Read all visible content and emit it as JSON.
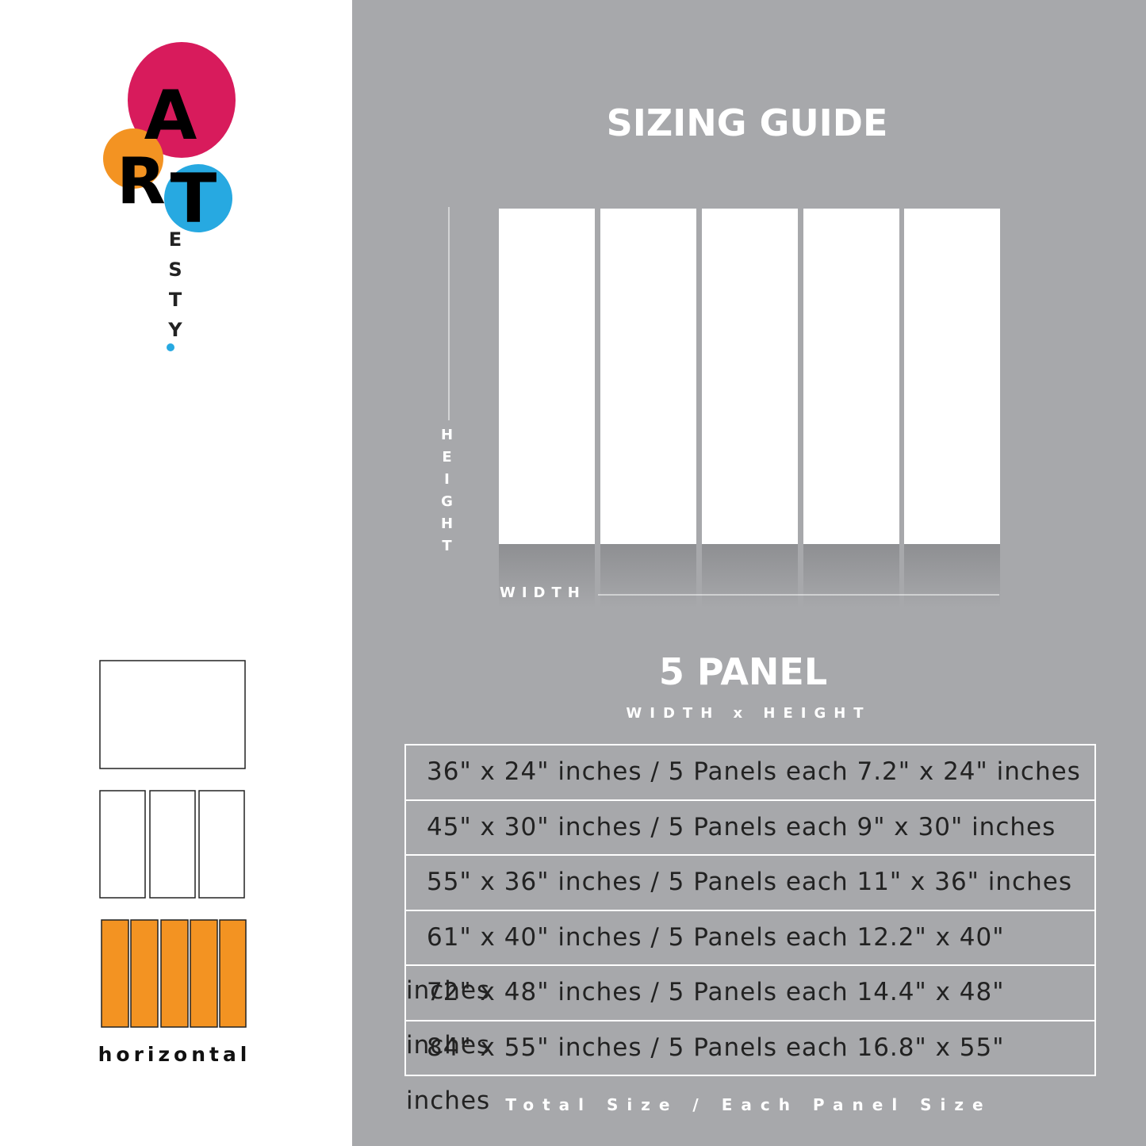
{
  "logo": {
    "main": [
      "A",
      "R",
      "T"
    ],
    "sub": "ESTY"
  },
  "orientation_label": "horizontal",
  "title": "SIZING GUIDE",
  "diagram": {
    "height_label": "HEIGHT",
    "width_label": "WIDTH"
  },
  "panel_title": "5 PANEL",
  "dimension_order": "WIDTH x HEIGHT",
  "table": {
    "rows": [
      "36\" x 24\" inches / 5 Panels each 7.2\" x 24\" inches",
      "45\" x 30\" inches / 5 Panels each 9\" x 30\" inches",
      "55\" x 36\" inches / 5 Panels each 11\" x 36\" inches",
      "61\" x 40\" inches / 5 Panels each 12.2\" x 40\" inches",
      "72\" x 48\" inches / 5 Panels each 14.4\" x 48\" inches",
      "84\" x 55\" inches / 5 Panels each 16.8\" x 55\" inches"
    ]
  },
  "footer": "Total Size / Each Panel Size"
}
